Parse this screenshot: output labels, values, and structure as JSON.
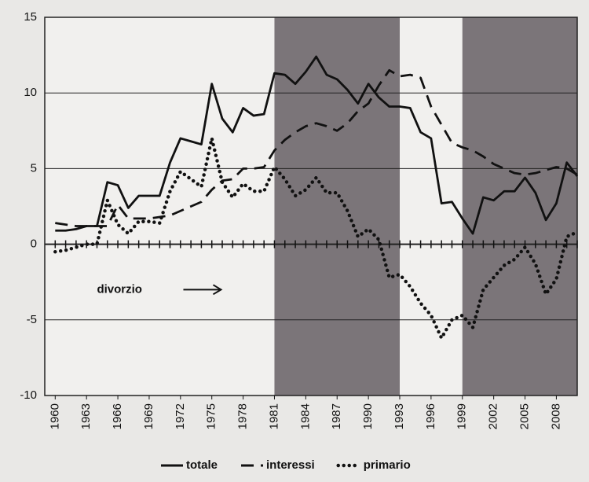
{
  "chart_data": {
    "type": "line",
    "x": [
      1960,
      1961,
      1962,
      1963,
      1964,
      1965,
      1966,
      1967,
      1968,
      1969,
      1970,
      1971,
      1972,
      1973,
      1974,
      1975,
      1976,
      1977,
      1978,
      1979,
      1980,
      1981,
      1982,
      1983,
      1984,
      1985,
      1986,
      1987,
      1988,
      1989,
      1990,
      1991,
      1992,
      1993,
      1994,
      1995,
      1996,
      1997,
      1998,
      1999,
      2000,
      2001,
      2002,
      2003,
      2004,
      2005,
      2006,
      2007,
      2008,
      2009,
      2010
    ],
    "series": [
      {
        "name": "totale",
        "color": "#111111",
        "style": "solid",
        "values": [
          0.9,
          0.9,
          1.0,
          1.2,
          1.2,
          4.1,
          3.9,
          2.4,
          3.2,
          3.2,
          3.2,
          5.4,
          7.0,
          6.8,
          6.6,
          10.6,
          8.3,
          7.4,
          9.0,
          8.5,
          8.6,
          11.3,
          11.2,
          10.6,
          11.4,
          12.4,
          11.2,
          10.9,
          10.2,
          9.3,
          10.6,
          9.7,
          9.1,
          9.1,
          9.0,
          7.4,
          7.0,
          2.7,
          2.8,
          1.7,
          0.7,
          3.1,
          2.9,
          3.5,
          3.5,
          4.4,
          3.4,
          1.6,
          2.7,
          5.4,
          4.5
        ]
      },
      {
        "name": "interessi",
        "color": "#111111",
        "style": "dashed",
        "values": [
          1.4,
          1.3,
          1.2,
          1.2,
          1.2,
          1.2,
          2.6,
          1.7,
          1.7,
          1.7,
          1.8,
          1.9,
          2.2,
          2.5,
          2.8,
          3.6,
          4.2,
          4.3,
          5.0,
          5.0,
          5.1,
          6.2,
          6.9,
          7.4,
          7.8,
          8.0,
          7.8,
          7.5,
          8.0,
          8.8,
          9.3,
          10.5,
          11.5,
          11.1,
          11.2,
          11.0,
          9.1,
          7.9,
          6.7,
          6.4,
          6.2,
          5.8,
          5.3,
          5.0,
          4.7,
          4.6,
          4.7,
          4.9,
          5.1,
          5.0,
          4.6
        ]
      },
      {
        "name": "primario",
        "color": "#111111",
        "style": "dotted",
        "values": [
          -0.5,
          -0.4,
          -0.2,
          0.0,
          0.0,
          2.9,
          1.3,
          0.7,
          1.5,
          1.5,
          1.4,
          3.5,
          4.8,
          4.3,
          3.8,
          7.0,
          4.1,
          3.1,
          4.0,
          3.5,
          3.5,
          5.1,
          4.3,
          3.2,
          3.6,
          4.4,
          3.4,
          3.4,
          2.2,
          0.5,
          1.0,
          0.3,
          -2.2,
          -2.0,
          -2.8,
          -3.9,
          -4.7,
          -6.2,
          -5.0,
          -4.7,
          -5.5,
          -3.0,
          -2.2,
          -1.4,
          -1.0,
          -0.2,
          -1.3,
          -3.3,
          -2.3,
          0.5,
          0.8
        ]
      }
    ],
    "xlim": [
      1959,
      2010
    ],
    "xticks": [
      1960,
      1963,
      1966,
      1969,
      1972,
      1975,
      1978,
      1981,
      1984,
      1987,
      1990,
      1993,
      1996,
      1999,
      2002,
      2005,
      2008
    ],
    "ylim": [
      -10,
      15
    ],
    "yticks": [
      -10,
      -5,
      0,
      5,
      10,
      15
    ],
    "grid": true,
    "shaded_regions": [
      [
        1981,
        1993
      ],
      [
        1999,
        2010
      ]
    ],
    "shade_color": "#6e676b",
    "annotation": {
      "text": "divorzio",
      "x": 1964,
      "y": -3
    },
    "legend": "bottom"
  }
}
